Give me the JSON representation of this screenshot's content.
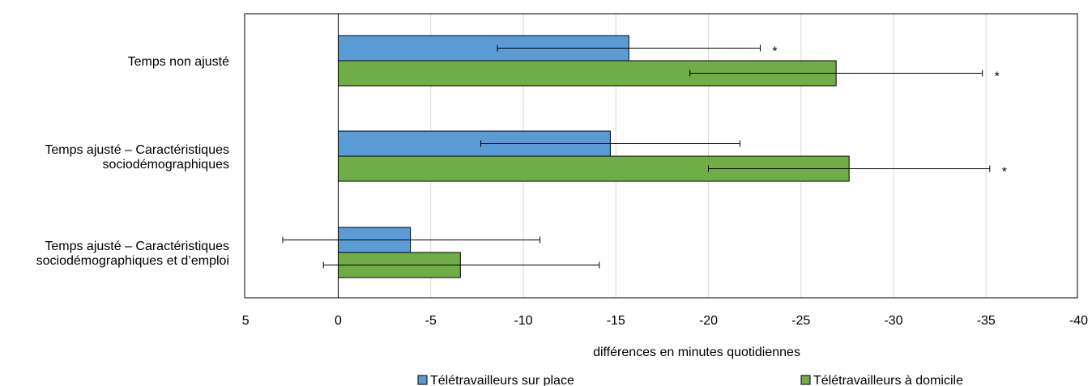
{
  "chart_data": {
    "type": "bar",
    "orientation": "horizontal",
    "reversed_x_axis": true,
    "categories": [
      [
        "Temps non ajusté"
      ],
      [
        "Temps ajusté – Caractéristiques",
        "sociodémographiques"
      ],
      [
        "Temps ajusté – Caractéristiques",
        "sociodémographiques et d’emploi"
      ]
    ],
    "series": [
      {
        "name": "Télétravailleurs sur place",
        "color": "#5b9bd5",
        "values": [
          -15.7,
          -14.7,
          -3.9
        ],
        "error_low": [
          -8.6,
          -7.7,
          3.0
        ],
        "error_high": [
          -22.8,
          -21.7,
          -10.9
        ],
        "significance": [
          "*",
          "",
          ""
        ]
      },
      {
        "name": "Télétravailleurs à domicile",
        "color": "#70ad47",
        "values": [
          -26.9,
          -27.6,
          -6.6
        ],
        "error_low": [
          -19.0,
          -20.0,
          0.8
        ],
        "error_high": [
          -34.8,
          -35.2,
          -14.1
        ],
        "significance": [
          "*",
          "*",
          ""
        ]
      }
    ],
    "xlim": [
      5,
      -40
    ],
    "xticks": [
      "5",
      "0",
      "-5",
      "-10",
      "-15",
      "-20",
      "-25",
      "-30",
      "-35",
      "-40"
    ],
    "xlabel": "différences en minutes quotidiennes",
    "ylabel": "",
    "title": "",
    "grid": "vertical",
    "legend": "bottom"
  }
}
